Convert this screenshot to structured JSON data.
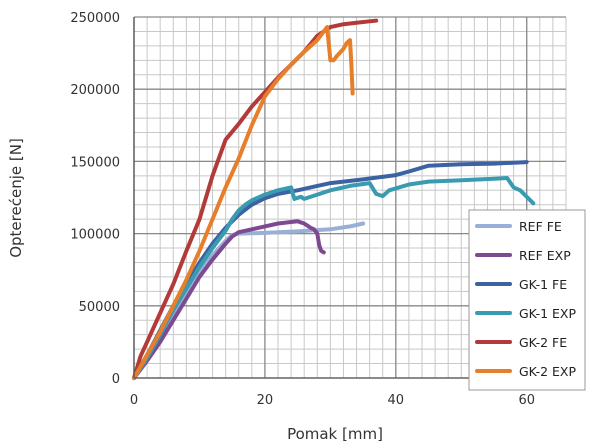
{
  "chart_data": {
    "type": "line",
    "title": "",
    "xlabel": "Pomak [mm]",
    "ylabel": "Opterećenje [N]",
    "xlim": [
      0,
      66
    ],
    "ylim": [
      0,
      250000
    ],
    "x_ticks": [
      0,
      20,
      40,
      60
    ],
    "x_tick_labels": [
      "0",
      "20",
      "40",
      "60"
    ],
    "y_ticks": [
      0,
      50000,
      100000,
      150000,
      200000,
      250000
    ],
    "y_tick_labels": [
      "0",
      "50000",
      "100000",
      "150000",
      "200000",
      "250000"
    ],
    "grid": true,
    "legend_position": "bottom-right",
    "series": [
      {
        "name": "REF FE",
        "color": "#9aafd6",
        "points": [
          [
            0,
            0
          ],
          [
            3,
            20000
          ],
          [
            6,
            45000
          ],
          [
            9,
            68000
          ],
          [
            12,
            85000
          ],
          [
            14,
            95000
          ],
          [
            15,
            99000
          ],
          [
            16,
            100000
          ],
          [
            20,
            100500
          ],
          [
            25,
            101500
          ],
          [
            30,
            103000
          ],
          [
            33,
            105000
          ],
          [
            35,
            107000
          ]
        ]
      },
      {
        "name": "REF EXP",
        "color": "#7d4a91",
        "points": [
          [
            0,
            0
          ],
          [
            2,
            12000
          ],
          [
            4,
            25000
          ],
          [
            6,
            40000
          ],
          [
            8,
            55000
          ],
          [
            10,
            70000
          ],
          [
            12,
            82000
          ],
          [
            14,
            93000
          ],
          [
            15,
            98000
          ],
          [
            16,
            101000
          ],
          [
            18,
            103000
          ],
          [
            20,
            105000
          ],
          [
            22,
            107000
          ],
          [
            24,
            108000
          ],
          [
            25,
            108500
          ],
          [
            26,
            107000
          ],
          [
            27,
            104000
          ],
          [
            27.5,
            103000
          ],
          [
            28,
            100000
          ],
          [
            28.3,
            92000
          ],
          [
            28.6,
            88000
          ],
          [
            29,
            87000
          ]
        ]
      },
      {
        "name": "GK-1 FE",
        "color": "#3b63a2",
        "points": [
          [
            0,
            0
          ],
          [
            2,
            16000
          ],
          [
            4,
            33000
          ],
          [
            6,
            50000
          ],
          [
            8,
            65000
          ],
          [
            10,
            80000
          ],
          [
            12,
            93000
          ],
          [
            14,
            104000
          ],
          [
            16,
            113000
          ],
          [
            18,
            120000
          ],
          [
            20,
            124500
          ],
          [
            22,
            127500
          ],
          [
            25,
            130000
          ],
          [
            28,
            133000
          ],
          [
            30,
            135000
          ],
          [
            35,
            137500
          ],
          [
            40,
            140500
          ],
          [
            42,
            143000
          ],
          [
            45,
            147000
          ],
          [
            50,
            148000
          ],
          [
            55,
            148500
          ],
          [
            60,
            149500
          ]
        ]
      },
      {
        "name": "GK-1 EXP",
        "color": "#3a9ab0",
        "points": [
          [
            0,
            0
          ],
          [
            2,
            14000
          ],
          [
            4,
            30000
          ],
          [
            6,
            47000
          ],
          [
            8,
            62000
          ],
          [
            10,
            77000
          ],
          [
            12,
            90000
          ],
          [
            14,
            102000
          ],
          [
            15,
            110000
          ],
          [
            16,
            116000
          ],
          [
            17,
            120000
          ],
          [
            18,
            123000
          ],
          [
            20,
            127000
          ],
          [
            22,
            130000
          ],
          [
            24,
            132000
          ],
          [
            24.5,
            124000
          ],
          [
            25.5,
            125500
          ],
          [
            26,
            124000
          ],
          [
            28,
            127000
          ],
          [
            30,
            130000
          ],
          [
            33,
            133000
          ],
          [
            36,
            135000
          ],
          [
            37,
            127500
          ],
          [
            38,
            126000
          ],
          [
            39,
            130000
          ],
          [
            42,
            134000
          ],
          [
            45,
            136000
          ],
          [
            50,
            137000
          ],
          [
            55,
            138000
          ],
          [
            57,
            138500
          ],
          [
            58,
            132000
          ],
          [
            59,
            130000
          ],
          [
            61,
            121000
          ]
        ]
      },
      {
        "name": "GK-2 FE",
        "color": "#b23a38",
        "points": [
          [
            0,
            0
          ],
          [
            1,
            15000
          ],
          [
            2,
            25000
          ],
          [
            4,
            45000
          ],
          [
            6,
            65000
          ],
          [
            8,
            88000
          ],
          [
            10,
            110000
          ],
          [
            12,
            140000
          ],
          [
            14,
            165000
          ],
          [
            16,
            176000
          ],
          [
            18,
            188000
          ],
          [
            20,
            198000
          ],
          [
            22,
            208000
          ],
          [
            24,
            217000
          ],
          [
            26,
            226000
          ],
          [
            28,
            237000
          ],
          [
            30,
            243000
          ],
          [
            32,
            245000
          ],
          [
            34,
            246000
          ],
          [
            36,
            247000
          ],
          [
            37,
            247500
          ]
        ]
      },
      {
        "name": "GK-2 EXP",
        "color": "#e67e2a",
        "points": [
          [
            0,
            0
          ],
          [
            2,
            16000
          ],
          [
            4,
            32000
          ],
          [
            6,
            50000
          ],
          [
            8,
            68000
          ],
          [
            10,
            88000
          ],
          [
            12,
            110000
          ],
          [
            14,
            132000
          ],
          [
            16,
            152000
          ],
          [
            18,
            175000
          ],
          [
            20,
            195000
          ],
          [
            22,
            207000
          ],
          [
            24,
            217000
          ],
          [
            26,
            226000
          ],
          [
            28,
            234000
          ],
          [
            29,
            240000
          ],
          [
            29.5,
            243000
          ],
          [
            30,
            220000
          ],
          [
            30.5,
            220000
          ],
          [
            31,
            223000
          ],
          [
            32,
            228000
          ],
          [
            32.5,
            232000
          ],
          [
            33,
            234000
          ],
          [
            33.2,
            218000
          ],
          [
            33.4,
            197000
          ]
        ]
      }
    ]
  }
}
